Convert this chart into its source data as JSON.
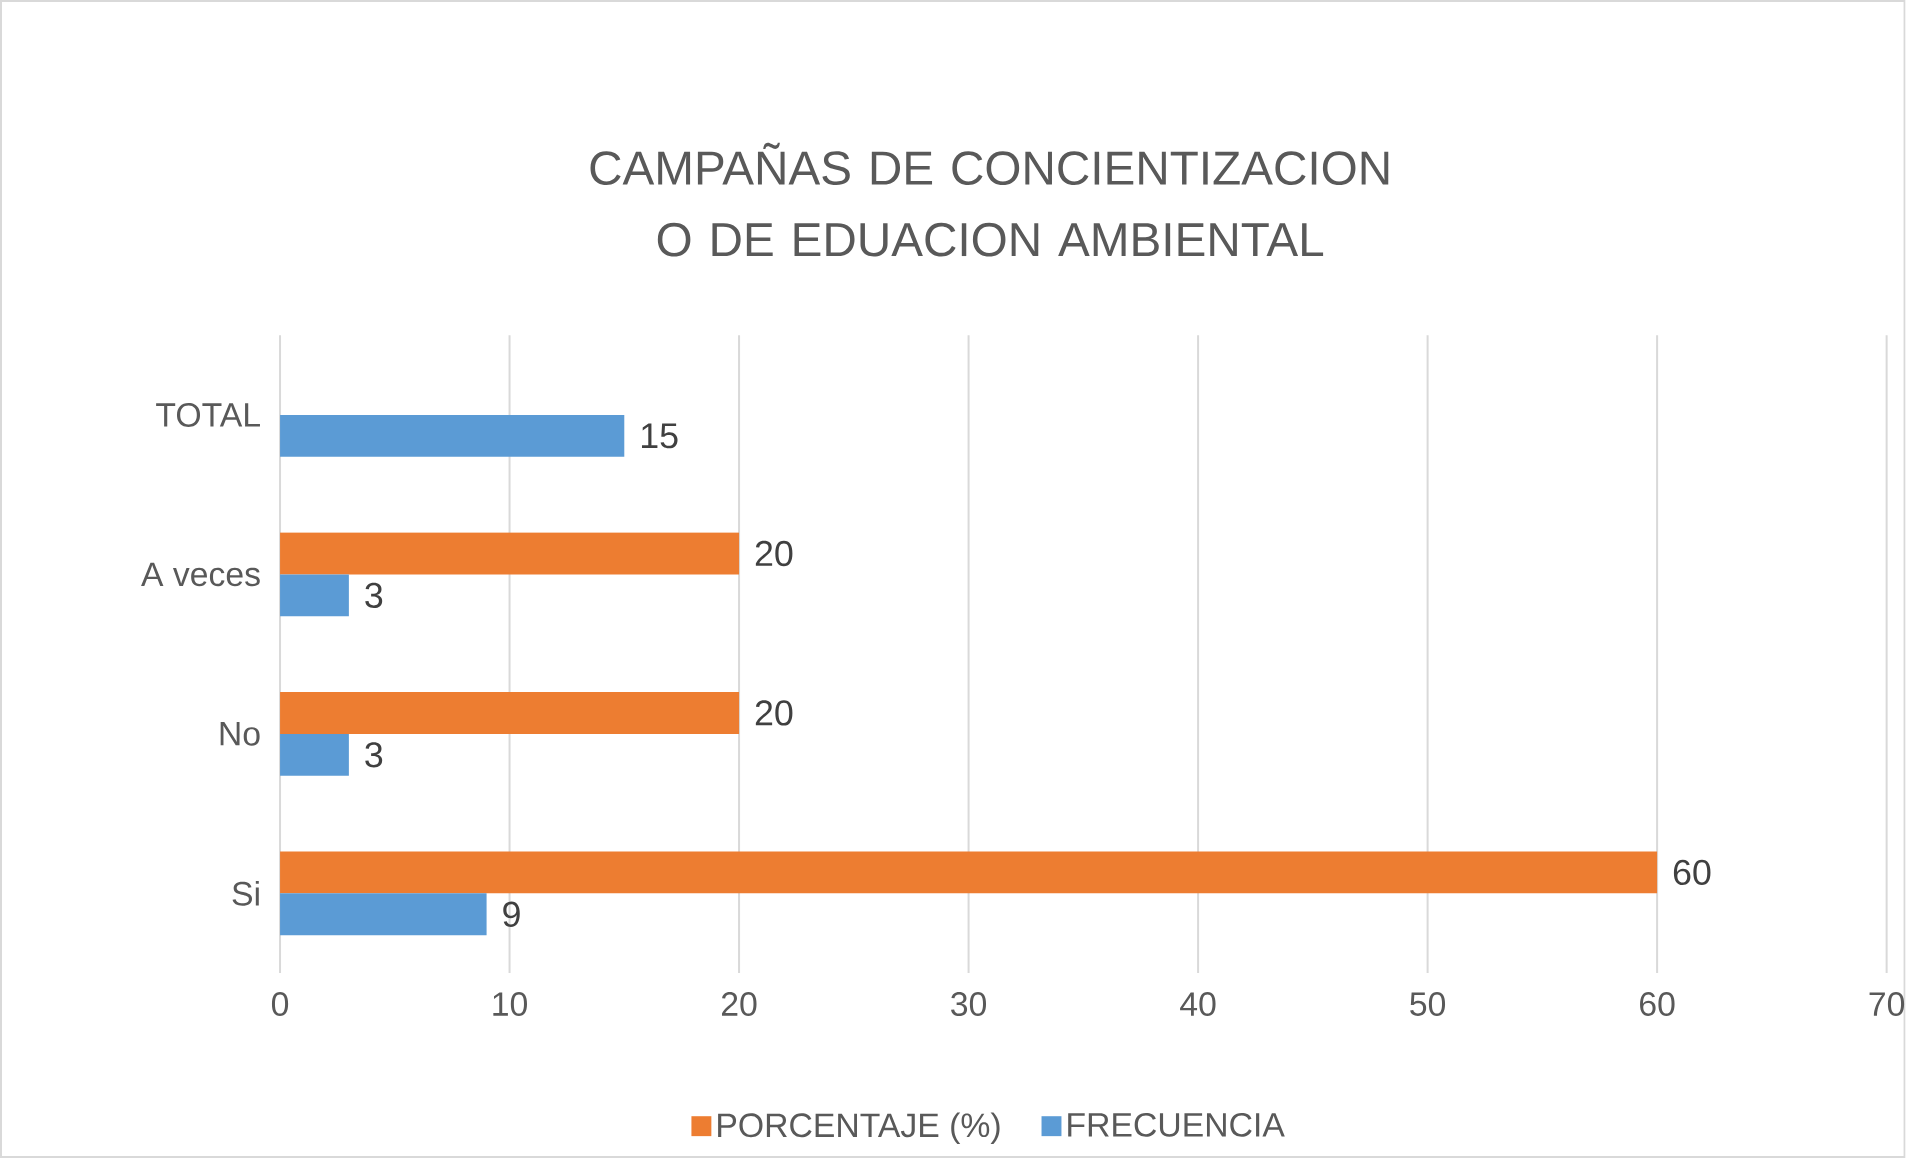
{
  "chart_data": {
    "type": "bar",
    "orientation": "horizontal",
    "title": "CAMPAÑAS DE CONCIENTIZACION O DE EDUACION AMBIENTAL",
    "categories": [
      "TOTAL",
      "A veces",
      "No",
      "Si"
    ],
    "series": [
      {
        "name": "PORCENTAJE (%)",
        "color": "#ed7d31",
        "values": [
          null,
          20,
          20,
          60
        ]
      },
      {
        "name": "FRECUENCIA",
        "color": "#5b9bd5",
        "values": [
          15,
          3,
          3,
          9
        ]
      }
    ],
    "xlim": [
      0,
      70
    ],
    "xticks": [
      0,
      10,
      20,
      30,
      40,
      50,
      60,
      70
    ],
    "grid": "x",
    "legend": "bottom",
    "data_labels": true
  }
}
